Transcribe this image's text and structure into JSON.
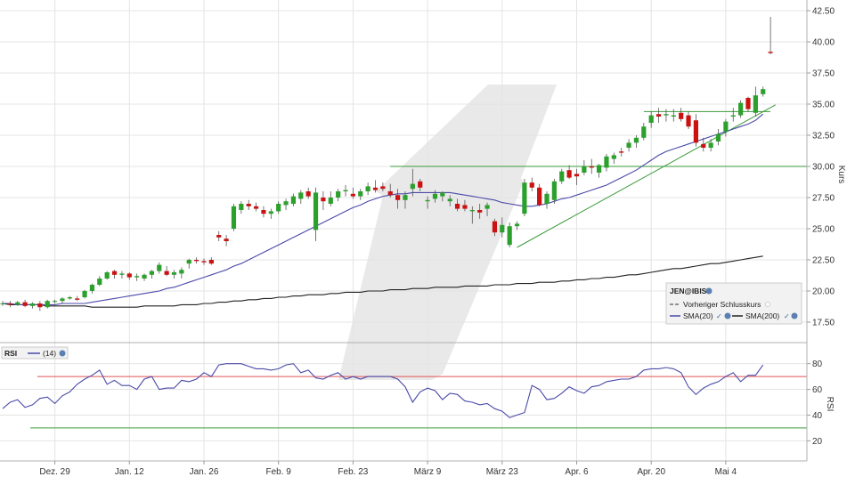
{
  "colors": {
    "up": "#2ca02c",
    "down": "#cc1111",
    "sma20": "#4a4aa8",
    "sma200": "#222222",
    "rsi": "#4a4aa8",
    "rsi_upper": "#e05555",
    "rsi_lower": "#3a9a3a",
    "support": "#3a9a3a",
    "grid": "#e4e4e4",
    "watermark": "#e9e9e9"
  },
  "legend": {
    "title": "JEN@IBIS",
    "prev_close": "Vorheriger Schlusskurs",
    "sma20": "SMA(20)",
    "sma200": "SMA(200)"
  },
  "rsi_legend": {
    "title": "RSI",
    "period": "(14)"
  },
  "chart_data": [
    {
      "type": "candlestick",
      "ylabel": "Kurs",
      "ylim": [
        16,
        43
      ],
      "y_ticks": [
        "17.50",
        "20.00",
        "22.50",
        "25.00",
        "27.50",
        "30.00",
        "32.50",
        "35.00",
        "37.50",
        "40.00",
        "42.50"
      ],
      "x_ticks": [
        "Dez. 29",
        "Jan. 12",
        "Jan. 26",
        "Feb. 9",
        "Feb. 23",
        "März 9",
        "März 23",
        "Apr. 6",
        "Apr. 20",
        "Mai 4"
      ],
      "x_tick_index": [
        7,
        17,
        27,
        37,
        47,
        57,
        67,
        77,
        87,
        97
      ],
      "ohlc": [
        [
          19.0,
          19.2,
          18.8,
          19.0
        ],
        [
          19.0,
          19.2,
          18.7,
          18.9
        ],
        [
          18.9,
          19.2,
          18.8,
          19.1
        ],
        [
          19.1,
          19.3,
          18.7,
          18.8
        ],
        [
          18.8,
          19.1,
          18.6,
          19.0
        ],
        [
          19.0,
          19.2,
          18.4,
          18.7
        ],
        [
          18.7,
          19.3,
          18.6,
          19.2
        ],
        [
          19.2,
          19.3,
          19.0,
          19.2
        ],
        [
          19.2,
          19.5,
          19.0,
          19.4
        ],
        [
          19.4,
          19.6,
          19.3,
          19.5
        ],
        [
          19.4,
          19.6,
          19.2,
          19.3
        ],
        [
          19.5,
          20.1,
          19.4,
          20.0
        ],
        [
          20.0,
          20.6,
          19.8,
          20.5
        ],
        [
          20.5,
          21.2,
          20.4,
          21.0
        ],
        [
          21.0,
          21.6,
          20.9,
          21.5
        ],
        [
          21.6,
          21.7,
          21.0,
          21.3
        ],
        [
          21.3,
          21.6,
          21.0,
          21.4
        ],
        [
          21.4,
          21.5,
          20.9,
          21.1
        ],
        [
          21.1,
          21.4,
          20.8,
          21.2
        ],
        [
          21.0,
          21.4,
          20.8,
          21.3
        ],
        [
          21.3,
          21.7,
          21.0,
          21.6
        ],
        [
          21.6,
          22.3,
          21.4,
          22.1
        ],
        [
          21.6,
          22.0,
          21.2,
          21.3
        ],
        [
          21.3,
          21.7,
          21.0,
          21.5
        ],
        [
          21.4,
          21.9,
          21.0,
          21.7
        ],
        [
          22.2,
          22.6,
          21.8,
          22.5
        ],
        [
          22.5,
          22.7,
          22.2,
          22.4
        ],
        [
          22.4,
          22.6,
          22.1,
          22.3
        ],
        [
          22.5,
          22.7,
          22.1,
          22.2
        ],
        [
          24.5,
          24.8,
          24.0,
          24.3
        ],
        [
          24.2,
          24.5,
          23.6,
          24.0
        ],
        [
          25.0,
          27.0,
          24.8,
          26.8
        ],
        [
          26.5,
          27.2,
          26.2,
          27.0
        ],
        [
          27.0,
          27.3,
          26.5,
          26.8
        ],
        [
          26.8,
          27.1,
          26.4,
          26.6
        ],
        [
          26.5,
          26.8,
          25.9,
          26.2
        ],
        [
          26.2,
          26.6,
          25.8,
          26.4
        ],
        [
          26.4,
          27.2,
          26.2,
          27.0
        ],
        [
          26.9,
          27.4,
          26.5,
          27.2
        ],
        [
          27.0,
          27.8,
          26.8,
          27.6
        ],
        [
          27.4,
          28.1,
          27.0,
          27.9
        ],
        [
          28.0,
          28.3,
          27.4,
          27.6
        ],
        [
          24.9,
          28.3,
          24.0,
          27.9
        ],
        [
          27.5,
          28.0,
          26.5,
          27.2
        ],
        [
          27.0,
          28.0,
          26.8,
          27.5
        ],
        [
          27.5,
          28.2,
          27.2,
          28.0
        ],
        [
          28.0,
          28.5,
          27.6,
          28.1
        ],
        [
          27.8,
          28.3,
          27.4,
          27.6
        ],
        [
          27.6,
          28.2,
          27.3,
          28.0
        ],
        [
          28.0,
          28.7,
          27.7,
          28.4
        ],
        [
          28.3,
          28.9,
          27.9,
          28.1
        ],
        [
          28.4,
          28.7,
          28.0,
          28.2
        ],
        [
          28.0,
          28.6,
          27.5,
          27.7
        ],
        [
          27.7,
          28.2,
          26.6,
          27.3
        ],
        [
          27.3,
          28.0,
          26.6,
          27.7
        ],
        [
          28.2,
          29.8,
          27.6,
          28.6
        ],
        [
          28.8,
          29.0,
          28.0,
          28.3
        ],
        [
          27.2,
          27.6,
          26.6,
          27.3
        ],
        [
          27.4,
          28.1,
          27.1,
          27.8
        ],
        [
          27.6,
          28.0,
          27.2,
          27.9
        ],
        [
          27.2,
          27.7,
          26.8,
          27.4
        ],
        [
          27.0,
          27.4,
          26.4,
          26.6
        ],
        [
          26.9,
          27.3,
          26.4,
          26.6
        ],
        [
          26.4,
          26.8,
          25.4,
          26.5
        ],
        [
          26.5,
          27.0,
          25.8,
          26.3
        ],
        [
          26.6,
          27.1,
          26.0,
          26.9
        ],
        [
          25.6,
          25.8,
          24.4,
          24.7
        ],
        [
          24.7,
          25.9,
          24.3,
          25.3
        ],
        [
          23.7,
          25.5,
          23.5,
          25.2
        ],
        [
          25.2,
          25.6,
          24.9,
          25.4
        ],
        [
          26.2,
          29.0,
          26.0,
          28.7
        ],
        [
          28.7,
          29.1,
          28.0,
          28.3
        ],
        [
          28.3,
          28.6,
          26.8,
          26.9
        ],
        [
          27.0,
          28.0,
          26.6,
          27.8
        ],
        [
          27.3,
          29.0,
          27.0,
          28.8
        ],
        [
          28.8,
          29.8,
          28.6,
          29.6
        ],
        [
          29.7,
          30.1,
          29.0,
          29.1
        ],
        [
          29.4,
          29.8,
          28.5,
          29.2
        ],
        [
          29.5,
          30.5,
          29.3,
          30.0
        ],
        [
          30.0,
          30.6,
          29.4,
          29.9
        ],
        [
          29.5,
          30.2,
          29.1,
          30.1
        ],
        [
          29.9,
          31.0,
          29.6,
          30.8
        ],
        [
          30.6,
          31.1,
          30.2,
          30.9
        ],
        [
          31.2,
          31.5,
          30.8,
          31.1
        ],
        [
          31.5,
          32.2,
          31.2,
          31.9
        ],
        [
          31.9,
          32.5,
          31.5,
          32.3
        ],
        [
          32.3,
          33.5,
          32.1,
          33.2
        ],
        [
          33.5,
          34.4,
          33.1,
          34.1
        ],
        [
          34.2,
          34.7,
          33.5,
          34.0
        ],
        [
          34.1,
          34.6,
          33.6,
          34.2
        ],
        [
          34.0,
          34.6,
          33.6,
          34.1
        ],
        [
          34.3,
          34.7,
          33.6,
          33.8
        ],
        [
          34.1,
          34.4,
          33.0,
          33.2
        ],
        [
          33.7,
          34.2,
          31.6,
          31.9
        ],
        [
          31.8,
          32.3,
          31.2,
          31.5
        ],
        [
          31.5,
          32.2,
          31.2,
          31.9
        ],
        [
          32.0,
          33.0,
          31.7,
          32.6
        ],
        [
          32.8,
          33.8,
          32.4,
          33.6
        ],
        [
          34.0,
          34.7,
          33.6,
          34.1
        ],
        [
          34.1,
          35.3,
          33.9,
          35.1
        ],
        [
          35.5,
          35.6,
          34.4,
          34.6
        ],
        [
          34.3,
          36.4,
          34.0,
          35.7
        ],
        [
          35.8,
          36.4,
          35.6,
          36.2
        ],
        [
          39.2,
          42.0,
          39.0,
          39.1
        ]
      ],
      "sma20": [
        19.0,
        19.0,
        18.9,
        18.9,
        18.9,
        18.9,
        18.9,
        18.9,
        19.0,
        19.0,
        19.0,
        19.0,
        19.1,
        19.2,
        19.3,
        19.4,
        19.5,
        19.6,
        19.7,
        19.8,
        19.9,
        20.0,
        20.2,
        20.3,
        20.5,
        20.7,
        20.9,
        21.1,
        21.3,
        21.5,
        21.7,
        22.0,
        22.2,
        22.5,
        22.8,
        23.1,
        23.4,
        23.7,
        24.0,
        24.3,
        24.6,
        24.9,
        25.2,
        25.5,
        25.8,
        26.1,
        26.4,
        26.7,
        26.9,
        27.2,
        27.4,
        27.6,
        27.7,
        27.8,
        27.8,
        27.9,
        27.9,
        27.9,
        27.9,
        27.9,
        27.9,
        27.8,
        27.7,
        27.6,
        27.5,
        27.4,
        27.3,
        27.1,
        27.0,
        26.9,
        26.8,
        26.8,
        26.9,
        27.0,
        27.2,
        27.4,
        27.5,
        27.7,
        27.9,
        28.1,
        28.3,
        28.5,
        28.8,
        29.1,
        29.4,
        29.7,
        30.1,
        30.5,
        30.9,
        31.2,
        31.4,
        31.6,
        31.8,
        32.0,
        32.2,
        32.4,
        32.6,
        32.8,
        33.0,
        33.2,
        33.4,
        33.7,
        34.2
      ],
      "sma200": [
        19.0,
        18.9,
        18.9,
        18.9,
        18.9,
        18.9,
        18.8,
        18.8,
        18.8,
        18.8,
        18.8,
        18.8,
        18.7,
        18.7,
        18.7,
        18.7,
        18.7,
        18.7,
        18.7,
        18.8,
        18.8,
        18.8,
        18.8,
        18.8,
        18.9,
        18.9,
        18.9,
        19.0,
        19.0,
        19.1,
        19.1,
        19.2,
        19.2,
        19.3,
        19.3,
        19.4,
        19.4,
        19.5,
        19.5,
        19.6,
        19.6,
        19.7,
        19.7,
        19.7,
        19.8,
        19.8,
        19.9,
        19.9,
        19.9,
        20.0,
        20.0,
        20.0,
        20.1,
        20.1,
        20.1,
        20.2,
        20.2,
        20.2,
        20.3,
        20.3,
        20.3,
        20.3,
        20.4,
        20.4,
        20.4,
        20.4,
        20.5,
        20.5,
        20.5,
        20.6,
        20.6,
        20.6,
        20.7,
        20.7,
        20.7,
        20.8,
        20.8,
        20.9,
        20.9,
        21.0,
        21.0,
        21.1,
        21.1,
        21.2,
        21.3,
        21.3,
        21.4,
        21.5,
        21.6,
        21.7,
        21.8,
        21.8,
        21.9,
        22.0,
        22.1,
        22.2,
        22.2,
        22.3,
        22.4,
        22.5,
        22.6,
        22.7,
        22.8
      ],
      "support_levels": [
        30.0,
        34.4
      ],
      "trendline": {
        "from": [
          69,
          23.5
        ],
        "to": [
          102,
          34.8
        ]
      }
    },
    {
      "type": "line",
      "ylabel": "RSI",
      "ylim": [
        5,
        95
      ],
      "y_ticks": [
        "20",
        "40",
        "60",
        "80"
      ],
      "thresholds": [
        70,
        30
      ],
      "series": [
        {
          "name": "(14)",
          "values": [
            45,
            50,
            52,
            46,
            48,
            53,
            54,
            49,
            55,
            58,
            64,
            68,
            71,
            75,
            64,
            67,
            63,
            63,
            60,
            68,
            70,
            60,
            61,
            61,
            67,
            66,
            68,
            73,
            70,
            79,
            80,
            80,
            80,
            78,
            76,
            76,
            75,
            76,
            79,
            80,
            73,
            75,
            69,
            68,
            71,
            73,
            68,
            70,
            68,
            70,
            70,
            70,
            70,
            68,
            62,
            50,
            58,
            61,
            59,
            52,
            57,
            56,
            51,
            50,
            48,
            49,
            45,
            43,
            38,
            40,
            42,
            63,
            60,
            52,
            53,
            57,
            62,
            59,
            57,
            62,
            63,
            66,
            67,
            68,
            68,
            70,
            75,
            76,
            76,
            77,
            76,
            73,
            62,
            56,
            61,
            64,
            66,
            70,
            73,
            66,
            71,
            71,
            79
          ]
        }
      ]
    }
  ]
}
